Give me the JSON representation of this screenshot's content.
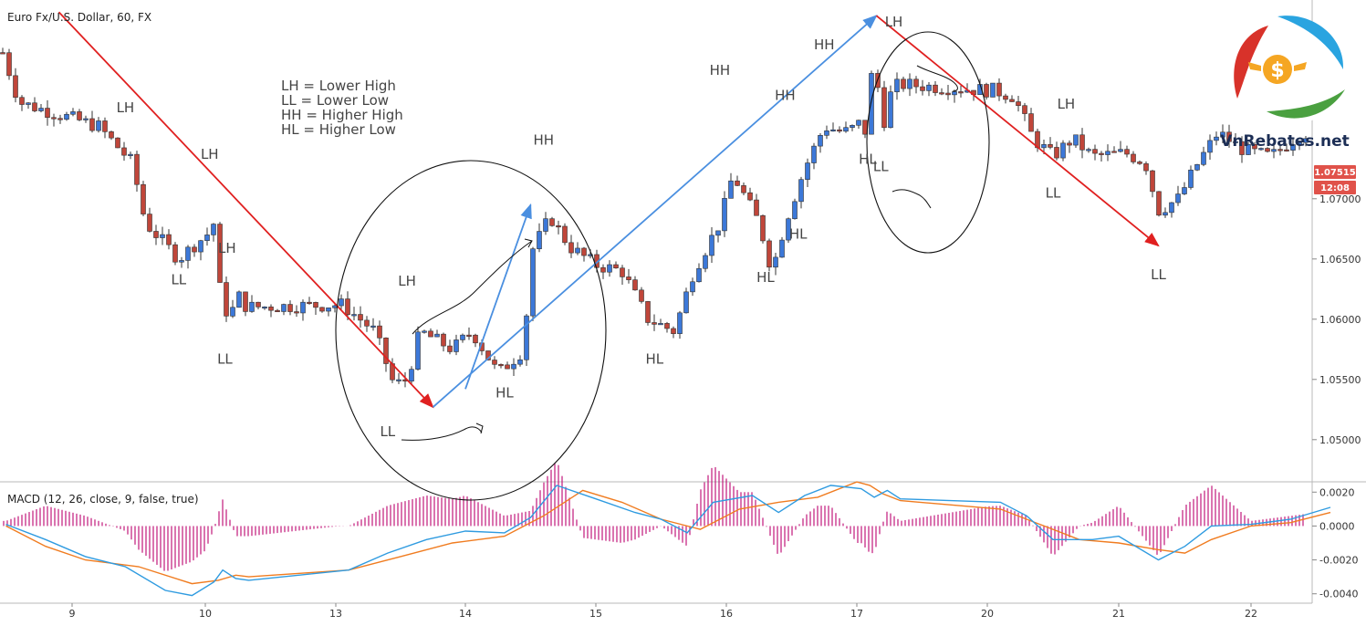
{
  "chart_title": "Euro Fx/U.S. Dollar, 60, FX",
  "macd_title": "MACD (12, 26, close, 9, false, true)",
  "legend": [
    "LH = Lower High",
    "LL = Lower Low",
    "HH = Higher High",
    "HL = Higher Low"
  ],
  "price_badge": {
    "price": "1.07515",
    "countdown": "12:08",
    "color": "#e0524a"
  },
  "logo": {
    "text": "VnRebates.net",
    "icon": "dollar-coin-logo-icon"
  },
  "colors": {
    "up": "#3c78d8",
    "down": "#c0463a",
    "macd": "#2f9be0",
    "signal": "#f07c20",
    "hist": "#c2187a",
    "downtrend": "#e02020",
    "uptrend": "#4a8fe0"
  },
  "chart_data": [
    {
      "type": "candlestick",
      "title": "Euro Fx/U.S. Dollar, 60, FX",
      "x_ticks": [
        "9",
        "10",
        "13",
        "14",
        "15",
        "16",
        "17",
        "20",
        "21",
        "22"
      ],
      "y_ticks": [
        "1.07000",
        "1.06500",
        "1.06000",
        "1.05500",
        "1.05000"
      ],
      "ylim": [
        1.0465,
        1.0865
      ],
      "last_price": "1.07515",
      "swing_labels": [
        {
          "text": "LH",
          "x": 9.4,
          "price": 1.0772
        },
        {
          "text": "LL",
          "x": 9.8,
          "price": 1.0629
        },
        {
          "text": "LH",
          "x": 10.1,
          "price": 1.0733
        },
        {
          "text": "LH",
          "x": 10.5,
          "price": 1.0655
        },
        {
          "text": "LL",
          "x": 10.45,
          "price": 1.0563
        },
        {
          "text": "LH",
          "x": 13.55,
          "price": 1.0628
        },
        {
          "text": "LL",
          "x": 13.4,
          "price": 1.0503
        },
        {
          "text": "HH",
          "x": 14.6,
          "price": 1.0745
        },
        {
          "text": "HL",
          "x": 14.3,
          "price": 1.0535
        },
        {
          "text": "HL",
          "x": 15.45,
          "price": 1.0563
        },
        {
          "text": "HH",
          "x": 15.95,
          "price": 1.0803
        },
        {
          "text": "HH",
          "x": 16.45,
          "price": 1.0782
        },
        {
          "text": "HL",
          "x": 16.3,
          "price": 1.0631
        },
        {
          "text": "HL",
          "x": 16.55,
          "price": 1.0667
        },
        {
          "text": "HH",
          "x": 16.75,
          "price": 1.0824
        },
        {
          "text": "HH",
          "x": 17.45,
          "price": 1.0866
        },
        {
          "text": "LH",
          "x": 17.85,
          "price": 1.0843
        },
        {
          "text": "HL",
          "x": 17.25,
          "price": 1.0729
        },
        {
          "text": "LL",
          "x": 17.55,
          "price": 1.0723
        },
        {
          "text": "LH",
          "x": 20.6,
          "price": 1.0775
        },
        {
          "text": "LL",
          "x": 20.5,
          "price": 1.0701
        },
        {
          "text": "LL",
          "x": 21.3,
          "price": 1.0633
        }
      ],
      "trend_lines": [
        {
          "kind": "down",
          "from": [
            8.9,
            1.0855
          ],
          "to": [
            13.75,
            1.0527
          ]
        },
        {
          "kind": "up",
          "from": [
            13.75,
            1.0527
          ],
          "to": [
            17.45,
            1.0852
          ]
        },
        {
          "kind": "up",
          "from": [
            14.0,
            1.0542
          ],
          "to": [
            14.5,
            1.0695
          ]
        },
        {
          "kind": "down",
          "from": [
            17.45,
            1.0852
          ],
          "to": [
            21.3,
            1.0661
          ]
        }
      ]
    },
    {
      "type": "line",
      "title": "MACD (12, 26, close, 9, false, true)",
      "y_ticks": [
        "0.0020",
        "0.0000",
        "-0.0020",
        "-0.0040"
      ],
      "ylim": [
        -0.0045,
        0.0025
      ],
      "series": [
        {
          "points": [
            [
              8.5,
              0.0001
            ],
            [
              8.8,
              -0.0008
            ],
            [
              9.1,
              -0.0018
            ],
            [
              9.4,
              -0.0024
            ],
            [
              9.7,
              -0.0038
            ],
            [
              9.9,
              -0.0041
            ],
            [
              10.2,
              -0.0033
            ],
            [
              10.4,
              -0.0026
            ],
            [
              10.7,
              -0.0031
            ],
            [
              11.0,
              -0.0032
            ],
            [
              13.1,
              -0.0026
            ],
            [
              13.4,
              -0.0016
            ],
            [
              13.7,
              -0.0008
            ],
            [
              14.0,
              -0.0003
            ],
            [
              14.3,
              -0.0004
            ],
            [
              14.5,
              0.0005
            ],
            [
              14.7,
              0.0024
            ],
            [
              15.0,
              0.0016
            ],
            [
              15.3,
              0.0008
            ],
            [
              15.5,
              0.0004
            ],
            [
              15.7,
              -0.0004
            ],
            [
              15.9,
              0.0014
            ],
            [
              16.2,
              0.0018
            ],
            [
              16.4,
              0.0008
            ],
            [
              16.6,
              0.0018
            ],
            [
              16.8,
              0.0024
            ],
            [
              17.1,
              0.0022
            ],
            [
              17.4,
              0.0017
            ],
            [
              17.7,
              0.0021
            ],
            [
              18.0,
              0.0016
            ],
            [
              20.1,
              0.0014
            ],
            [
              20.3,
              0.0006
            ],
            [
              20.5,
              -0.0008
            ],
            [
              20.8,
              -0.0008
            ],
            [
              21.0,
              -0.0006
            ],
            [
              21.3,
              -0.002
            ],
            [
              21.5,
              -0.0012
            ],
            [
              21.7,
              0.0
            ],
            [
              22.0,
              0.0001
            ],
            [
              22.3,
              0.0004
            ],
            [
              22.6,
              0.0011
            ]
          ]
        },
        {
          "points": [
            [
              8.5,
              0.0
            ],
            [
              8.8,
              -0.0012
            ],
            [
              9.1,
              -0.002
            ],
            [
              9.5,
              -0.0024
            ],
            [
              9.9,
              -0.0034
            ],
            [
              10.3,
              -0.0032
            ],
            [
              10.7,
              -0.0029
            ],
            [
              11.0,
              -0.003
            ],
            [
              13.1,
              -0.0026
            ],
            [
              13.5,
              -0.0018
            ],
            [
              13.9,
              -0.001
            ],
            [
              14.3,
              -0.0006
            ],
            [
              14.6,
              0.0006
            ],
            [
              14.9,
              0.0021
            ],
            [
              15.2,
              0.0014
            ],
            [
              15.5,
              0.0004
            ],
            [
              15.8,
              -0.0002
            ],
            [
              16.1,
              0.001
            ],
            [
              16.4,
              0.0014
            ],
            [
              16.7,
              0.0017
            ],
            [
              17.0,
              0.0026
            ],
            [
              17.3,
              0.0024
            ],
            [
              17.6,
              0.0019
            ],
            [
              18.0,
              0.0015
            ],
            [
              20.1,
              0.001
            ],
            [
              20.4,
              0.0001
            ],
            [
              20.7,
              -0.0008
            ],
            [
              21.0,
              -0.001
            ],
            [
              21.3,
              -0.0014
            ],
            [
              21.5,
              -0.0016
            ],
            [
              21.7,
              -0.0008
            ],
            [
              22.0,
              0.0
            ],
            [
              22.3,
              0.0002
            ],
            [
              22.6,
              0.0008
            ]
          ]
        }
      ]
    }
  ]
}
